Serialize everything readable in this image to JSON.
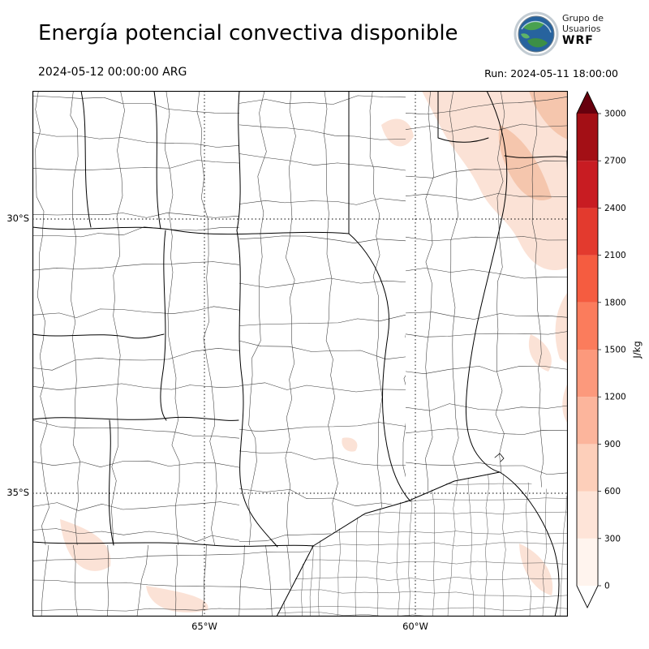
{
  "header": {
    "title": "Energía potencial convectiva disponible",
    "valid_time": "2024-05-12 00:00:00 ARG",
    "run_label": "Run: 2024-05-11 18:00:00",
    "logo": {
      "line1": "Grupo de",
      "line2": "Usuarios",
      "line3": "WRF"
    }
  },
  "map": {
    "y_ticks": [
      "30°S",
      "35°S"
    ],
    "x_ticks": [
      "65°W",
      "60°W"
    ],
    "shade_light": "#fbe2d6",
    "shade_dark": "#f5c6ad"
  },
  "colorbar": {
    "unit": "J/kg",
    "ticks": [
      0,
      300,
      600,
      900,
      1200,
      1500,
      1800,
      2100,
      2400,
      2700,
      3000
    ],
    "bin_colors": [
      "#fff4ee",
      "#fee4d8",
      "#fdcfba",
      "#fcb59c",
      "#fc997c",
      "#fb7c5c",
      "#f55c40",
      "#e33a2e",
      "#c81c22",
      "#a30f15"
    ],
    "over_color": "#67000d",
    "under_color": "#ffffff"
  },
  "chart_data": {
    "type": "heatmap",
    "title": "Energía potencial convectiva disponible",
    "variable": "CAPE (convective available potential energy)",
    "units": "J/kg",
    "valid_time": "2024-05-12 00:00:00 ARG",
    "model_run": "2024-05-11 18:00:00",
    "region": "central-northern Argentina (WRF model domain)",
    "x_axis": {
      "ticks": [
        "65°W",
        "60°W"
      ]
    },
    "y_axis": {
      "ticks": [
        "30°S",
        "35°S"
      ]
    },
    "colorbar": {
      "min": 0,
      "max": 3000,
      "step": 300,
      "ticks": [
        0,
        300,
        600,
        900,
        1200,
        1500,
        1800,
        2100,
        2400,
        2700,
        3000
      ],
      "colormap": "Reds",
      "over_color": "#67000d",
      "under_color": "#ffffff",
      "orientation": "vertical-right"
    },
    "values_summary": "CAPE ≈ 0 J/kg over most of the domain; light shading ≈300–600 J/kg over the northeast corner (upper-right), with small ≈300 J/kg patches at bottom-left, bottom-center, along the lower-right coast and near the top-center province border"
  }
}
